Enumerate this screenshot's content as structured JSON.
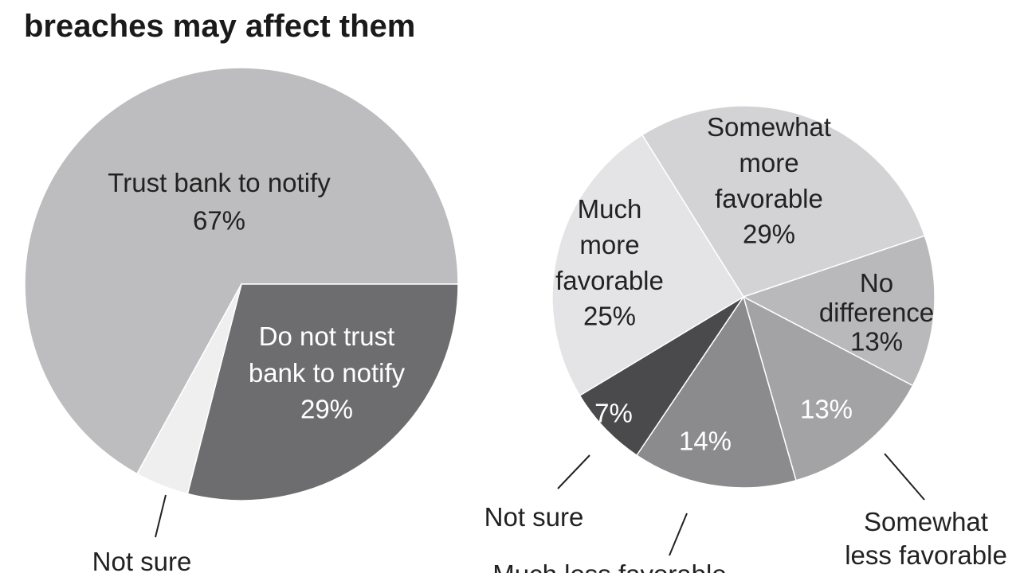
{
  "title": "breaches may affect them",
  "chart_data": [
    {
      "type": "pie",
      "labels": [
        "Trust bank to notify",
        "Do not trust bank to notify",
        "Not sure"
      ],
      "values": [
        67,
        29,
        4
      ],
      "value_labels": [
        "67%",
        "29%",
        null
      ],
      "colors": [
        "#bdbdbf",
        "#6d6d6f",
        "#efefef"
      ]
    },
    {
      "type": "pie",
      "labels": [
        "Somewhat more favorable",
        "No difference",
        "Somewhat less favorable",
        "Much less favorable",
        "Not sure",
        "Much more favorable"
      ],
      "values": [
        29,
        13,
        13,
        14,
        7,
        25
      ],
      "value_labels": [
        "29%",
        "13%",
        "13%",
        "14%",
        "7%",
        "25%"
      ],
      "colors": [
        "#d3d3d5",
        "#b9b9bb",
        "#a3a3a5",
        "#8b8b8d",
        "#4a4a4c",
        "#e4e4e6"
      ]
    }
  ]
}
